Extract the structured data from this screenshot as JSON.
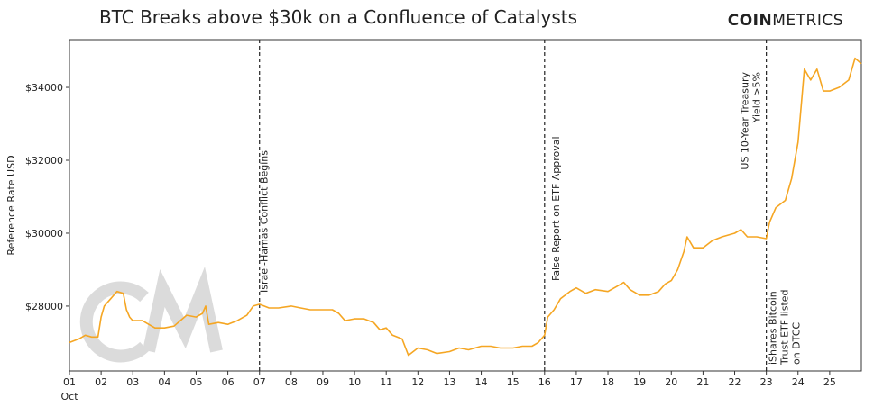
{
  "chart_data": {
    "type": "line",
    "title": "BTC Breaks above $30k on a Confluence of Catalysts",
    "brand": {
      "bold": "COIN",
      "light": "METRICS"
    },
    "y_label": "Reference Rate USD",
    "x_sublabel": "Oct",
    "xlim": [
      1,
      26
    ],
    "ylim": [
      26220,
      35310
    ],
    "xticks": [
      {
        "value": 1,
        "label": "01"
      },
      {
        "value": 2,
        "label": "02"
      },
      {
        "value": 3,
        "label": "03"
      },
      {
        "value": 4,
        "label": "04"
      },
      {
        "value": 5,
        "label": "05"
      },
      {
        "value": 6,
        "label": "06"
      },
      {
        "value": 7,
        "label": "07"
      },
      {
        "value": 8,
        "label": "08"
      },
      {
        "value": 9,
        "label": "09"
      },
      10,
      11,
      12,
      13,
      14,
      15,
      16,
      17,
      18,
      19,
      20,
      21,
      22,
      23,
      24,
      25
    ],
    "yticks": [
      {
        "value": 28000,
        "label": "$28000"
      },
      {
        "value": 30000,
        "label": "$30000"
      },
      {
        "value": 32000,
        "label": "$32000"
      },
      {
        "value": 34000,
        "label": "$34000"
      }
    ],
    "series": [
      {
        "name": "BTC",
        "color": "#f5a623",
        "x": [
          1,
          1.3,
          1.5,
          1.7,
          1.9,
          2.0,
          2.1,
          2.3,
          2.5,
          2.7,
          2.8,
          2.9,
          3.0,
          3.3,
          3.5,
          3.7,
          4.0,
          4.3,
          4.5,
          4.7,
          5.0,
          5.2,
          5.3,
          5.4,
          5.7,
          6.0,
          6.3,
          6.6,
          6.8,
          7.0,
          7.3,
          7.6,
          8.0,
          8.3,
          8.6,
          9.0,
          9.3,
          9.5,
          9.7,
          10.0,
          10.3,
          10.6,
          10.8,
          11.0,
          11.2,
          11.5,
          11.7,
          12.0,
          12.3,
          12.6,
          13.0,
          13.3,
          13.6,
          14.0,
          14.3,
          14.6,
          15.0,
          15.3,
          15.6,
          15.8,
          16.0,
          16.1,
          16.3,
          16.5,
          16.8,
          17.0,
          17.3,
          17.6,
          18.0,
          18.3,
          18.5,
          18.7,
          19.0,
          19.3,
          19.6,
          19.8,
          20.0,
          20.2,
          20.4,
          20.5,
          20.7,
          21.0,
          21.3,
          21.6,
          22.0,
          22.2,
          22.4,
          22.7,
          23.0,
          23.1,
          23.3,
          23.6,
          23.8,
          24.0,
          24.1,
          24.2,
          24.4,
          24.6,
          24.8,
          25.0,
          25.3,
          25.6,
          25.8,
          26.0
        ],
        "values": [
          27000,
          27100,
          27200,
          27150,
          27150,
          27700,
          28000,
          28200,
          28400,
          28350,
          27900,
          27700,
          27600,
          27600,
          27500,
          27400,
          27400,
          27450,
          27600,
          27750,
          27700,
          27800,
          28000,
          27500,
          27550,
          27500,
          27600,
          27750,
          28000,
          28050,
          27950,
          27950,
          28000,
          27950,
          27900,
          27900,
          27900,
          27800,
          27600,
          27650,
          27650,
          27550,
          27350,
          27400,
          27200,
          27100,
          26650,
          26850,
          26800,
          26700,
          26750,
          26850,
          26800,
          26900,
          26900,
          26850,
          26850,
          26900,
          26900,
          27000,
          27200,
          27700,
          27900,
          28200,
          28400,
          28500,
          28350,
          28450,
          28400,
          28550,
          28650,
          28450,
          28300,
          28300,
          28400,
          28600,
          28700,
          29000,
          29500,
          29900,
          29600,
          29600,
          29800,
          29900,
          30000,
          30100,
          29900,
          29900,
          29850,
          30300,
          30700,
          30900,
          31500,
          32500,
          33500,
          34500,
          34200,
          34500,
          33900,
          33900,
          34000,
          34200,
          34800,
          34650
        ]
      }
    ],
    "events": [
      {
        "x": 7,
        "lines": [
          "Israel-Hamas Conflict Begins"
        ]
      },
      {
        "x": 16,
        "lines": [
          "False Report on ETF Approval"
        ]
      },
      {
        "x": 23,
        "lines": [
          "US 10-Year Treasury",
          "Yield >5%"
        ]
      },
      {
        "x": 23,
        "lines": [
          "iShares Bitcoin",
          "Trust ETF listed",
          "on DTCC"
        ]
      }
    ]
  }
}
